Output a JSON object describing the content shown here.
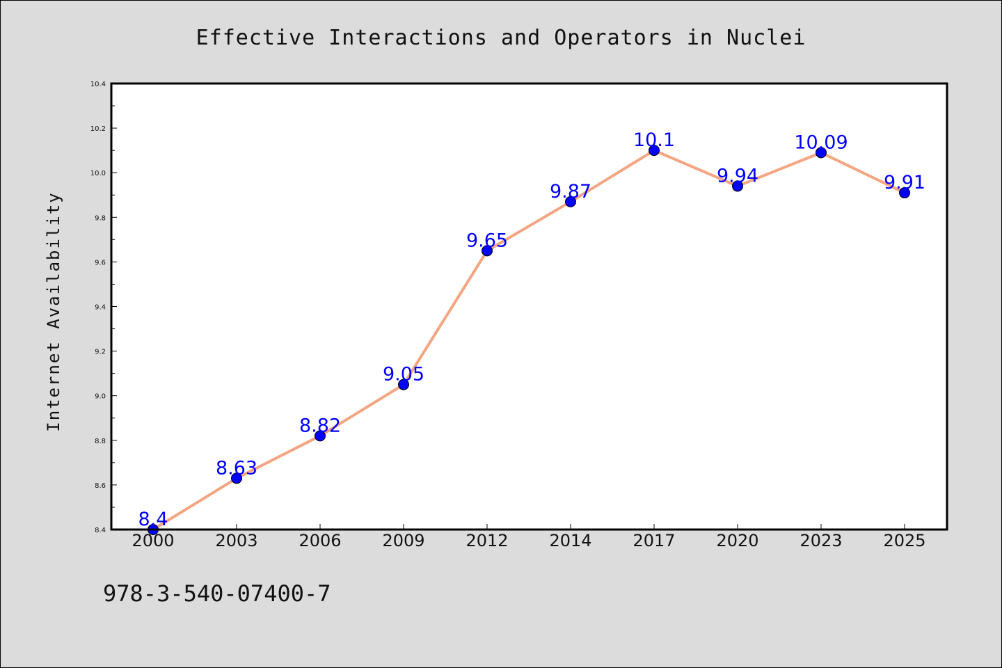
{
  "chart_data": {
    "type": "line",
    "title": "Effective Interactions and Operators in Nuclei",
    "xlabel": "",
    "ylabel": "Internet Availability",
    "categories": [
      "2000",
      "2003",
      "2006",
      "2009",
      "2012",
      "2014",
      "2017",
      "2020",
      "2023",
      "2025"
    ],
    "series": [
      {
        "values": [
          8.4,
          8.63,
          8.82,
          9.05,
          9.65,
          9.87,
          10.1,
          9.94,
          10.09,
          9.91
        ],
        "labels": [
          "8.4",
          "8.63",
          "8.82",
          "9.05",
          "9.65",
          "9.87",
          "10.1",
          "9.94",
          "10.09",
          "9.91"
        ],
        "line_color": "#f4a582",
        "marker_color": "#0000ff"
      }
    ],
    "ylim": [
      8.4,
      10.4
    ],
    "yticks": [
      8.4,
      8.6,
      8.8,
      9.0,
      9.2,
      9.4,
      9.6,
      9.8,
      10.0,
      10.2,
      10.4
    ],
    "ytick_labels": [
      "8.4",
      "8.6",
      "8.8",
      "9.0",
      "9.2",
      "9.4",
      "9.6",
      "9.8",
      "10.0",
      "10.2",
      "10.4"
    ],
    "grid": false,
    "legend": "none",
    "data_label_color": "#0000ff"
  },
  "footer_text": "978-3-540-07400-7"
}
